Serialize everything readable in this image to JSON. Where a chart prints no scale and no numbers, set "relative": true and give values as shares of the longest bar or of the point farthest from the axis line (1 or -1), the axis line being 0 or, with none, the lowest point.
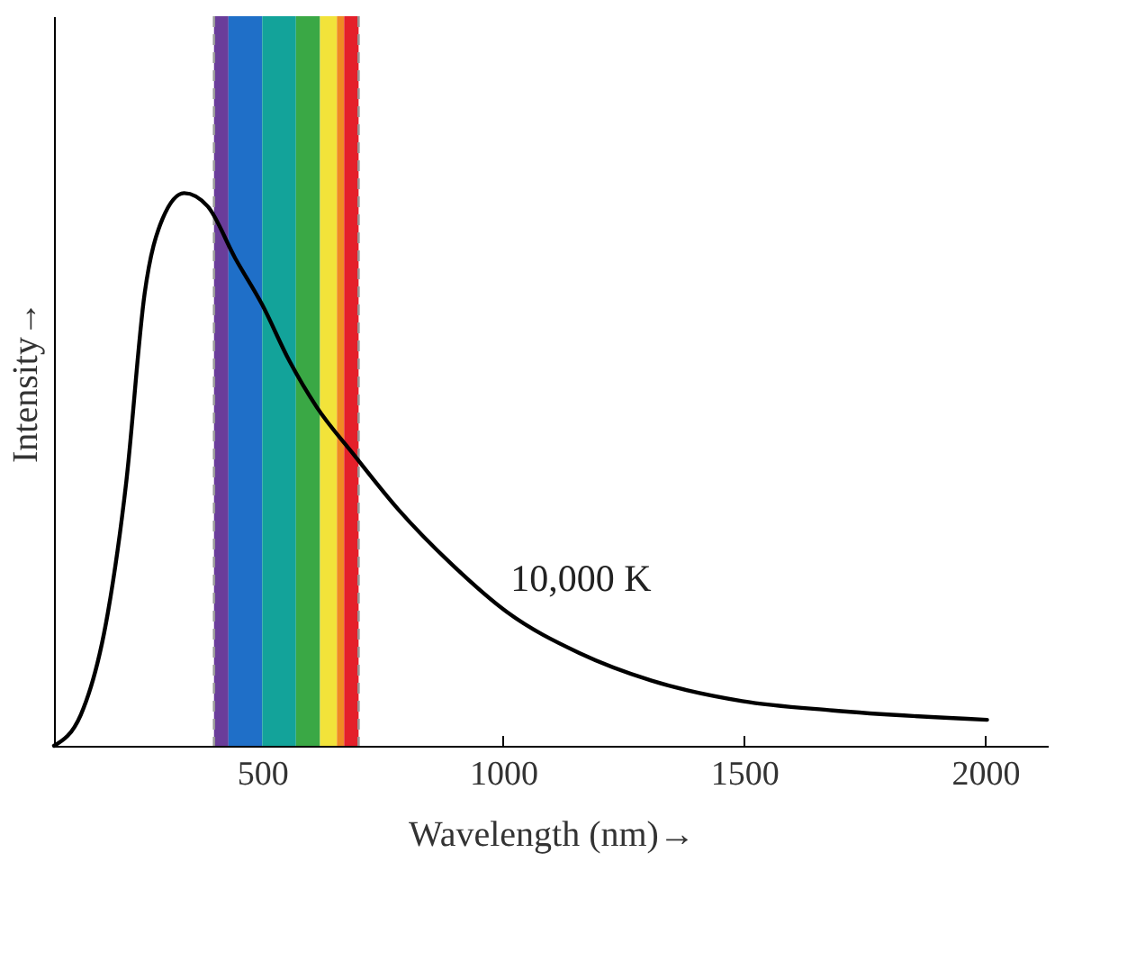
{
  "chart_data": {
    "type": "line",
    "relative": true,
    "xlabel": "Wavelength (nm)→",
    "ylabel": "Intensity→",
    "x": [
      68,
      124,
      180,
      218,
      256,
      293,
      338,
      387,
      444,
      500,
      556,
      613,
      688,
      782,
      895,
      1008,
      1158,
      1308,
      1496,
      1684,
      2004
    ],
    "series": [
      {
        "name": "10,000 K",
        "color": "#000000",
        "values": [
          0,
          0.057,
          0.242,
          0.478,
          0.818,
          0.953,
          1,
          0.976,
          0.882,
          0.798,
          0.697,
          0.613,
          0.529,
          0.428,
          0.327,
          0.242,
          0.168,
          0.118,
          0.081,
          0.064,
          0.047
        ]
      }
    ],
    "xlim": [
      68,
      2130
    ],
    "xticks": [
      500,
      1000,
      1500,
      2000
    ],
    "grid": false,
    "marker": "none",
    "line_style": "solid",
    "bands": [
      {
        "axis": "x",
        "from": 400,
        "to": 430,
        "color": "#6a3d9a"
      },
      {
        "axis": "x",
        "from": 430,
        "to": 500,
        "color": "#1f6fc8"
      },
      {
        "axis": "x",
        "from": 500,
        "to": 570,
        "color": "#13a39a"
      },
      {
        "axis": "x",
        "from": 570,
        "to": 620,
        "color": "#3aa845"
      },
      {
        "axis": "x",
        "from": 620,
        "to": 655,
        "color": "#f2e33a"
      },
      {
        "axis": "x",
        "from": 655,
        "to": 670,
        "color": "#f08a24"
      },
      {
        "axis": "x",
        "from": 670,
        "to": 700,
        "color": "#e4202a"
      }
    ],
    "ref_lines": [
      {
        "axis": "x",
        "value": 400,
        "color": "#999999",
        "line_style": "dashed"
      },
      {
        "axis": "x",
        "value": 700,
        "color": "#999999",
        "line_style": "dashed"
      }
    ]
  }
}
